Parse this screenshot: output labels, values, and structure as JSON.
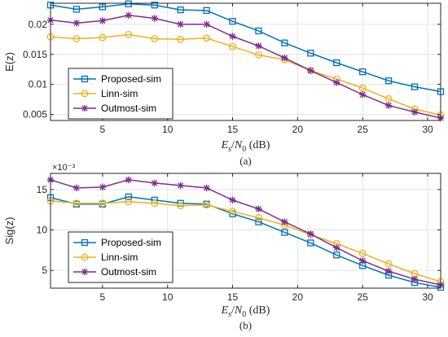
{
  "chart_data": [
    {
      "type": "line",
      "panel": "top",
      "ylabel": "E(z)",
      "xlabel": {
        "lhs_num": "E",
        "lhs_sub": "s",
        "rhs_num": "N",
        "rhs_sub": "0",
        "unit": "(dB)"
      },
      "caption": "(a)",
      "xlim": [
        1,
        31
      ],
      "ylim": [
        0.004,
        0.0235
      ],
      "xticks": [
        5,
        10,
        15,
        20,
        25,
        30
      ],
      "yticks": [
        0.005,
        0.01,
        0.015,
        0.02
      ],
      "ytick_labels": [
        "0.005",
        "0.01",
        "0.015",
        "0.02"
      ],
      "exponent_label": "",
      "grid": true,
      "legend_position": "lower-left",
      "x": [
        1,
        3,
        5,
        7,
        9,
        11,
        13,
        15,
        17,
        19,
        21,
        23,
        25,
        27,
        29,
        31
      ],
      "series": [
        {
          "name": "Proposed-sim",
          "color": "#0072BD",
          "marker": "square",
          "values": [
            0.0232,
            0.0225,
            0.0229,
            0.0234,
            0.0232,
            0.0224,
            0.0223,
            0.0205,
            0.0189,
            0.0169,
            0.0152,
            0.0136,
            0.0121,
            0.0106,
            0.0096,
            0.0088
          ]
        },
        {
          "name": "Linn-sim",
          "color": "#EDB120",
          "marker": "circle",
          "values": [
            0.0179,
            0.0176,
            0.0178,
            0.0183,
            0.0176,
            0.0175,
            0.0177,
            0.0163,
            0.0149,
            0.0141,
            0.0123,
            0.0109,
            0.0094,
            0.0076,
            0.0059,
            0.0049
          ]
        },
        {
          "name": "Outmost-sim",
          "color": "#7E2F8E",
          "marker": "asterisk",
          "values": [
            0.0207,
            0.0202,
            0.0206,
            0.0215,
            0.021,
            0.02,
            0.02,
            0.018,
            0.0164,
            0.0144,
            0.0123,
            0.0103,
            0.0083,
            0.0065,
            0.0054,
            0.0044
          ]
        }
      ]
    },
    {
      "type": "line",
      "panel": "bottom",
      "ylabel": "Sig(z)",
      "xlabel": {
        "lhs_num": "E",
        "lhs_sub": "s",
        "rhs_num": "N",
        "rhs_sub": "0",
        "unit": "(dB)"
      },
      "caption": "(b)",
      "xlim": [
        1,
        31
      ],
      "ylim": [
        2.8,
        17
      ],
      "xticks": [
        5,
        10,
        15,
        20,
        25,
        30
      ],
      "yticks": [
        5,
        10,
        15
      ],
      "ytick_labels": [
        "5",
        "10",
        "15"
      ],
      "exponent_label": "×10⁻³",
      "grid": true,
      "legend_position": "lower-left",
      "x": [
        1,
        3,
        5,
        7,
        9,
        11,
        13,
        15,
        17,
        19,
        21,
        23,
        25,
        27,
        29,
        31
      ],
      "series": [
        {
          "name": "Proposed-sim",
          "color": "#0072BD",
          "marker": "square",
          "values": [
            14.0,
            13.2,
            13.2,
            14.1,
            13.7,
            13.3,
            13.2,
            12.0,
            11.0,
            9.7,
            8.4,
            6.9,
            5.6,
            4.4,
            3.5,
            2.9
          ]
        },
        {
          "name": "Linn-sim",
          "color": "#EDB120",
          "marker": "circle",
          "values": [
            13.6,
            13.3,
            13.3,
            13.5,
            13.3,
            13.0,
            13.1,
            12.3,
            11.5,
            10.6,
            9.4,
            8.3,
            7.1,
            5.8,
            4.6,
            3.6
          ]
        },
        {
          "name": "Outmost-sim",
          "color": "#7E2F8E",
          "marker": "asterisk",
          "values": [
            16.2,
            15.2,
            15.3,
            16.2,
            15.8,
            15.5,
            15.2,
            13.7,
            12.6,
            11.0,
            9.5,
            7.8,
            6.2,
            4.9,
            3.9,
            3.2
          ]
        }
      ]
    }
  ]
}
